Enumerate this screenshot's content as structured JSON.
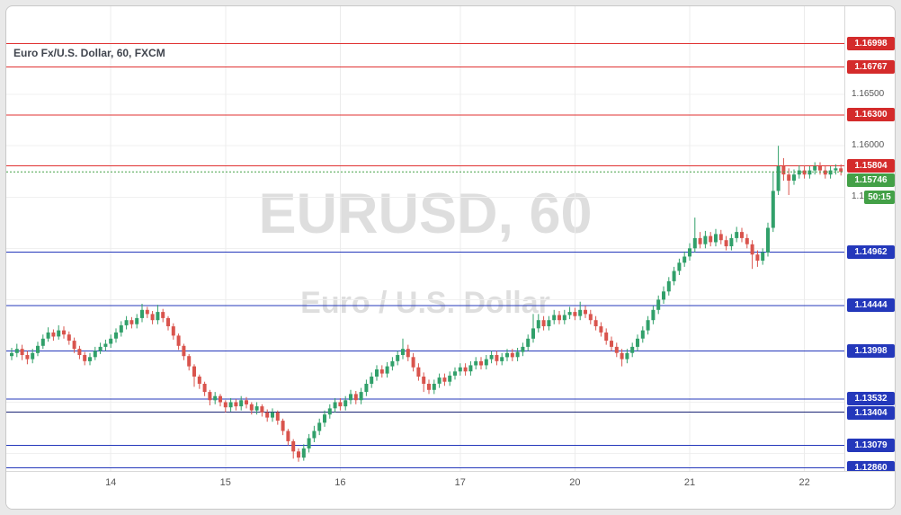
{
  "window": {
    "title": "Euro Fx/U.S. Dollar, 60, FXCM"
  },
  "watermark": {
    "line1": "EURUSD, 60",
    "line2": "Euro / U.S. Dollar"
  },
  "colors": {
    "up": "#31a06a",
    "down": "#d9544d",
    "background": "#ffffff",
    "frame_background": "#e9e9e9",
    "grid": "#f0f0f0",
    "grid_vertical": "#ececec",
    "axis_text": "#555555",
    "level_red": "#e03232",
    "level_blue": "#2438bb",
    "badge_red": "#d42b2b",
    "badge_blue": "#2438bb",
    "badge_green": "#43a047",
    "current_line": "#43a047",
    "watermark": "rgba(0,0,0,0.13)"
  },
  "price_axis": {
    "ticks": [
      {
        "label": "1.16500",
        "price": 1.165
      },
      {
        "label": "1.16000",
        "price": 1.16
      },
      {
        "label": "1.15500",
        "price": 1.155
      }
    ],
    "current": {
      "label": "1.15746",
      "price": 1.15746,
      "badge_color": "#43a047"
    },
    "countdown": {
      "label": "50:15",
      "badge_color": "#43a047"
    }
  },
  "chart_data": {
    "type": "candlestick",
    "symbol": "EURUSD",
    "interval": "60",
    "feed": "FXCM",
    "title": "Euro Fx/U.S. Dollar, 60, FXCM",
    "y_range": {
      "min": 1.1283,
      "max": 1.1736
    },
    "y_gridlines": [
      1.165,
      1.16,
      1.155,
      1.15,
      1.145,
      1.14,
      1.135,
      1.13
    ],
    "current_price": 1.15746,
    "bar_countdown": "50:15",
    "days": [
      {
        "label": "14",
        "index": 19
      },
      {
        "label": "15",
        "index": 41
      },
      {
        "label": "16",
        "index": 63
      },
      {
        "label": "17",
        "index": 86
      },
      {
        "label": "20",
        "index": 108
      },
      {
        "label": "21",
        "index": 130
      },
      {
        "label": "22",
        "index": 152
      }
    ],
    "levels": [
      {
        "label": "1.16998",
        "price": 1.16998,
        "line_color": "#e03232",
        "badge_color": "#d42b2b"
      },
      {
        "label": "1.16767",
        "price": 1.16767,
        "line_color": "#e03232",
        "badge_color": "#d42b2b"
      },
      {
        "label": "1.16300",
        "price": 1.163,
        "line_color": "#e03232",
        "badge_color": "#d42b2b"
      },
      {
        "label": "1.15804",
        "price": 1.15804,
        "line_color": "#e03232",
        "badge_color": "#d42b2b"
      },
      {
        "label": "1.14962",
        "price": 1.14962,
        "line_color": "#2438bb",
        "badge_color": "#2438bb"
      },
      {
        "label": "1.14444",
        "price": 1.14444,
        "line_color": "#2438bb",
        "badge_color": "#2438bb"
      },
      {
        "label": "1.13998",
        "price": 1.13998,
        "line_color": "#2438bb",
        "badge_color": "#2438bb"
      },
      {
        "label": "1.13532",
        "price": 1.13532,
        "line_color": "#2438bb",
        "badge_color": "#2438bb"
      },
      {
        "label": "1.13404",
        "price": 1.13404,
        "line_color": "#1b2575",
        "badge_color": "#2438bb"
      },
      {
        "label": "1.13079",
        "price": 1.13079,
        "line_color": "#2438bb",
        "badge_color": "#2438bb"
      },
      {
        "label": "1.12860",
        "price": 1.1286,
        "line_color": "#2438bb",
        "badge_color": "#2438bb"
      }
    ],
    "first_open": 1.1395,
    "candles": [
      [
        1.1403,
        1.1391,
        1.1398
      ],
      [
        1.1407,
        1.1394,
        1.1402
      ],
      [
        1.1406,
        1.1391,
        1.1396
      ],
      [
        1.14,
        1.1387,
        1.1392
      ],
      [
        1.1402,
        1.1388,
        1.1398
      ],
      [
        1.1409,
        1.1395,
        1.1405
      ],
      [
        1.1416,
        1.1402,
        1.1412
      ],
      [
        1.1423,
        1.1409,
        1.1418
      ],
      [
        1.1421,
        1.141,
        1.1414
      ],
      [
        1.1425,
        1.1411,
        1.142
      ],
      [
        1.1424,
        1.1412,
        1.1416
      ],
      [
        1.1419,
        1.1406,
        1.141
      ],
      [
        1.1413,
        1.1398,
        1.1402
      ],
      [
        1.1405,
        1.1392,
        1.1396
      ],
      [
        1.1399,
        1.1386,
        1.139
      ],
      [
        1.1398,
        1.1386,
        1.1394
      ],
      [
        1.1404,
        1.1391,
        1.14
      ],
      [
        1.1408,
        1.1397,
        1.1404
      ],
      [
        1.1411,
        1.14,
        1.1407
      ],
      [
        1.1416,
        1.1403,
        1.1412
      ],
      [
        1.1422,
        1.1408,
        1.1418
      ],
      [
        1.1429,
        1.1414,
        1.1425
      ],
      [
        1.1434,
        1.1421,
        1.143
      ],
      [
        1.1433,
        1.1422,
        1.1426
      ],
      [
        1.1436,
        1.1422,
        1.1432
      ],
      [
        1.1446,
        1.1428,
        1.144
      ],
      [
        1.1443,
        1.1432,
        1.1436
      ],
      [
        1.1439,
        1.1426,
        1.143
      ],
      [
        1.1445,
        1.1426,
        1.1438
      ],
      [
        1.1441,
        1.1428,
        1.1432
      ],
      [
        1.1434,
        1.142,
        1.1424
      ],
      [
        1.1427,
        1.1411,
        1.1415
      ],
      [
        1.1417,
        1.1401,
        1.1405
      ],
      [
        1.1407,
        1.1391,
        1.1395
      ],
      [
        1.1397,
        1.1381,
        1.1385
      ],
      [
        1.1387,
        1.1365,
        1.1375
      ],
      [
        1.1377,
        1.1363,
        1.1368
      ],
      [
        1.137,
        1.1356,
        1.136
      ],
      [
        1.1362,
        1.1347,
        1.1352
      ],
      [
        1.136,
        1.1348,
        1.1356
      ],
      [
        1.1358,
        1.1346,
        1.135
      ],
      [
        1.1352,
        1.134,
        1.1345
      ],
      [
        1.1354,
        1.1341,
        1.135
      ],
      [
        1.1353,
        1.1342,
        1.1346
      ],
      [
        1.1356,
        1.1342,
        1.1352
      ],
      [
        1.1355,
        1.1344,
        1.1348
      ],
      [
        1.135,
        1.1338,
        1.1342
      ],
      [
        1.135,
        1.1338,
        1.1346
      ],
      [
        1.1348,
        1.1336,
        1.134
      ],
      [
        1.1343,
        1.1331,
        1.1335
      ],
      [
        1.1344,
        1.1331,
        1.134
      ],
      [
        1.1342,
        1.1328,
        1.1332
      ],
      [
        1.1334,
        1.1318,
        1.1322
      ],
      [
        1.1324,
        1.1308,
        1.1312
      ],
      [
        1.1314,
        1.1295,
        1.1302
      ],
      [
        1.1305,
        1.1292,
        1.1296
      ],
      [
        1.1309,
        1.1293,
        1.1305
      ],
      [
        1.1319,
        1.1301,
        1.1315
      ],
      [
        1.1327,
        1.1311,
        1.1322
      ],
      [
        1.1334,
        1.1318,
        1.133
      ],
      [
        1.1342,
        1.1326,
        1.1338
      ],
      [
        1.1348,
        1.1334,
        1.1344
      ],
      [
        1.1354,
        1.134,
        1.135
      ],
      [
        1.1354,
        1.1342,
        1.1346
      ],
      [
        1.1356,
        1.1342,
        1.1352
      ],
      [
        1.1362,
        1.1348,
        1.1358
      ],
      [
        1.1361,
        1.1348,
        1.1352
      ],
      [
        1.1364,
        1.1348,
        1.136
      ],
      [
        1.1372,
        1.1356,
        1.1368
      ],
      [
        1.1379,
        1.1364,
        1.1375
      ],
      [
        1.1386,
        1.1371,
        1.1382
      ],
      [
        1.1386,
        1.1374,
        1.1378
      ],
      [
        1.1389,
        1.1374,
        1.1385
      ],
      [
        1.1394,
        1.1381,
        1.139
      ],
      [
        1.14,
        1.1386,
        1.1396
      ],
      [
        1.1412,
        1.1392,
        1.1402
      ],
      [
        1.1406,
        1.139,
        1.1394
      ],
      [
        1.1398,
        1.138,
        1.1384
      ],
      [
        1.1388,
        1.1371,
        1.1375
      ],
      [
        1.1379,
        1.136,
        1.1368
      ],
      [
        1.1372,
        1.1358,
        1.1362
      ],
      [
        1.1372,
        1.1358,
        1.1368
      ],
      [
        1.1378,
        1.1364,
        1.1374
      ],
      [
        1.1378,
        1.1366,
        1.137
      ],
      [
        1.138,
        1.1366,
        1.1376
      ],
      [
        1.1384,
        1.1372,
        1.138
      ],
      [
        1.1388,
        1.1376,
        1.1384
      ],
      [
        1.1388,
        1.1376,
        1.138
      ],
      [
        1.139,
        1.1376,
        1.1386
      ],
      [
        1.1394,
        1.1382,
        1.139
      ],
      [
        1.1394,
        1.1382,
        1.1386
      ],
      [
        1.1396,
        1.1382,
        1.1392
      ],
      [
        1.14,
        1.1388,
        1.1396
      ],
      [
        1.14,
        1.1386,
        1.139
      ],
      [
        1.1398,
        1.1386,
        1.1394
      ],
      [
        1.1402,
        1.139,
        1.1398
      ],
      [
        1.1402,
        1.139,
        1.1394
      ],
      [
        1.1403,
        1.139,
        1.1399
      ],
      [
        1.1408,
        1.1395,
        1.1404
      ],
      [
        1.1416,
        1.14,
        1.1412
      ],
      [
        1.1436,
        1.1408,
        1.1422
      ],
      [
        1.1436,
        1.1418,
        1.143
      ],
      [
        1.1434,
        1.142,
        1.1424
      ],
      [
        1.1434,
        1.142,
        1.143
      ],
      [
        1.144,
        1.1426,
        1.1435
      ],
      [
        1.1439,
        1.1426,
        1.143
      ],
      [
        1.144,
        1.1426,
        1.1435
      ],
      [
        1.1443,
        1.1431,
        1.1438
      ],
      [
        1.1442,
        1.143,
        1.1434
      ],
      [
        1.1448,
        1.143,
        1.144
      ],
      [
        1.1444,
        1.1432,
        1.1436
      ],
      [
        1.144,
        1.1426,
        1.143
      ],
      [
        1.1434,
        1.142,
        1.1424
      ],
      [
        1.1428,
        1.1414,
        1.1418
      ],
      [
        1.1422,
        1.1406,
        1.141
      ],
      [
        1.1414,
        1.14,
        1.1404
      ],
      [
        1.1408,
        1.1394,
        1.1398
      ],
      [
        1.1402,
        1.1385,
        1.1392
      ],
      [
        1.1402,
        1.1388,
        1.1398
      ],
      [
        1.1408,
        1.1394,
        1.1404
      ],
      [
        1.1416,
        1.14,
        1.1412
      ],
      [
        1.1424,
        1.1408,
        1.142
      ],
      [
        1.1434,
        1.1416,
        1.143
      ],
      [
        1.1444,
        1.1426,
        1.144
      ],
      [
        1.1454,
        1.1436,
        1.145
      ],
      [
        1.1463,
        1.1446,
        1.1458
      ],
      [
        1.1472,
        1.1454,
        1.1468
      ],
      [
        1.1482,
        1.1464,
        1.1478
      ],
      [
        1.149,
        1.1474,
        1.1486
      ],
      [
        1.1497,
        1.1482,
        1.1492
      ],
      [
        1.1505,
        1.1488,
        1.15
      ],
      [
        1.153,
        1.1496,
        1.151
      ],
      [
        1.1516,
        1.15,
        1.1504
      ],
      [
        1.1517,
        1.15,
        1.1512
      ],
      [
        1.1516,
        1.1502,
        1.1506
      ],
      [
        1.1519,
        1.1502,
        1.1514
      ],
      [
        1.1518,
        1.1504,
        1.1508
      ],
      [
        1.1512,
        1.1498,
        1.1502
      ],
      [
        1.1514,
        1.1498,
        1.151
      ],
      [
        1.1521,
        1.1506,
        1.1516
      ],
      [
        1.152,
        1.1506,
        1.151
      ],
      [
        1.1514,
        1.15,
        1.1504
      ],
      [
        1.1508,
        1.148,
        1.1494
      ],
      [
        1.1498,
        1.1482,
        1.1488
      ],
      [
        1.15,
        1.1484,
        1.1496
      ],
      [
        1.1525,
        1.1492,
        1.152
      ],
      [
        1.1575,
        1.1516,
        1.1556
      ],
      [
        1.16,
        1.1552,
        1.158
      ],
      [
        1.1588,
        1.1566,
        1.1572
      ],
      [
        1.1578,
        1.1552,
        1.1566
      ],
      [
        1.1577,
        1.1562,
        1.1572
      ],
      [
        1.1581,
        1.1568,
        1.1576
      ],
      [
        1.1581,
        1.1568,
        1.1572
      ],
      [
        1.158,
        1.1568,
        1.1576
      ],
      [
        1.1584,
        1.1572,
        1.158
      ],
      [
        1.1584,
        1.1572,
        1.1576
      ],
      [
        1.158,
        1.1568,
        1.1572
      ],
      [
        1.158,
        1.1568,
        1.1576
      ],
      [
        1.1582,
        1.1572,
        1.1578
      ],
      [
        1.1582,
        1.1571,
        1.15746
      ]
    ]
  }
}
